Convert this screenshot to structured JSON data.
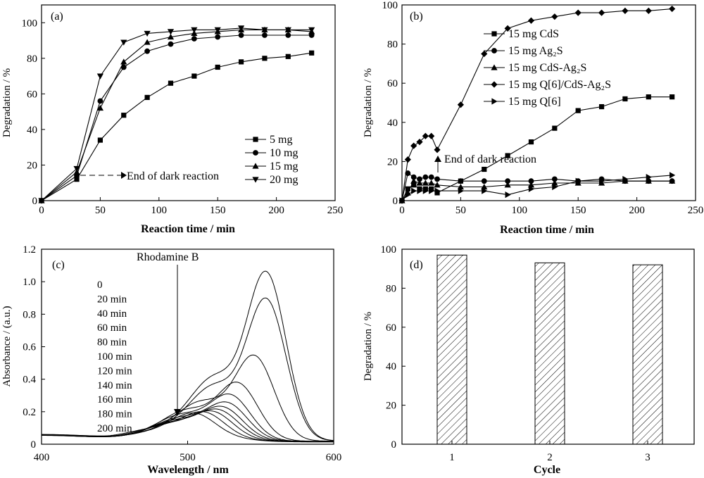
{
  "chart_data": [
    {
      "panel": "(a)",
      "type": "line",
      "xlabel": "Reaction time / min",
      "ylabel": "Degradation / %",
      "xlim": [
        0,
        250
      ],
      "ylim": [
        0,
        110
      ],
      "x_ticks": [
        "0",
        "50",
        "100",
        "150",
        "200",
        "250"
      ],
      "y_ticks": [
        "0",
        "20",
        "40",
        "60",
        "80",
        "100"
      ],
      "legend_position": "bottom-right",
      "series": [
        {
          "name": "5 mg",
          "marker": "square",
          "x": [
            0,
            30,
            50,
            70,
            90,
            110,
            130,
            150,
            170,
            190,
            210,
            230
          ],
          "y": [
            0,
            12,
            34,
            48,
            58,
            66,
            70,
            75,
            78,
            80,
            81,
            83
          ]
        },
        {
          "name": "10 mg",
          "marker": "circle",
          "x": [
            0,
            30,
            50,
            70,
            90,
            110,
            130,
            150,
            170,
            190,
            210,
            230
          ],
          "y": [
            0,
            14,
            56,
            75,
            84,
            88,
            91,
            92,
            93,
            93,
            93,
            93
          ]
        },
        {
          "name": "15 mg",
          "marker": "triangle-up",
          "x": [
            0,
            30,
            50,
            70,
            90,
            110,
            130,
            150,
            170,
            190,
            210,
            230
          ],
          "y": [
            0,
            16,
            52,
            78,
            89,
            92,
            94,
            95,
            96,
            96,
            96,
            95
          ]
        },
        {
          "name": "20 mg",
          "marker": "triangle-down",
          "x": [
            0,
            30,
            50,
            70,
            90,
            110,
            130,
            150,
            170,
            190,
            210,
            230
          ],
          "y": [
            0,
            18,
            70,
            89,
            94,
            95,
            96,
            96,
            97,
            96,
            96,
            96
          ]
        }
      ],
      "annotation": {
        "text": "End of dark reaction",
        "x": 30,
        "y": 14
      }
    },
    {
      "panel": "(b)",
      "type": "line",
      "xlabel": "Reaction time / min",
      "ylabel": "Degradation / %",
      "xlim": [
        0,
        250
      ],
      "ylim": [
        0,
        100
      ],
      "x_ticks": [
        "0",
        "50",
        "100",
        "150",
        "200",
        "250"
      ],
      "y_ticks": [
        "0",
        "20",
        "40",
        "60",
        "80",
        "100"
      ],
      "legend_position": "top-right",
      "series": [
        {
          "name": "15 mg CdS",
          "marker": "square",
          "x": [
            0,
            5,
            10,
            15,
            20,
            25,
            30,
            50,
            70,
            90,
            110,
            130,
            150,
            170,
            190,
            210,
            230
          ],
          "y": [
            0,
            6,
            8,
            6,
            6,
            6,
            4,
            10,
            16,
            23,
            30,
            37,
            46,
            48,
            52,
            53,
            53
          ]
        },
        {
          "name": "15 mg Ag₂S",
          "marker": "circle",
          "x": [
            0,
            5,
            10,
            15,
            20,
            25,
            30,
            50,
            70,
            90,
            110,
            130,
            150,
            170,
            190,
            210,
            230
          ],
          "y": [
            0,
            14,
            12,
            11,
            12,
            12,
            11,
            10,
            10,
            10,
            10,
            11,
            10,
            11,
            10,
            10,
            10
          ]
        },
        {
          "name": "15 mg CdS-Ag₂S",
          "marker": "triangle-up",
          "x": [
            0,
            5,
            10,
            15,
            20,
            25,
            30,
            50,
            70,
            90,
            110,
            130,
            150,
            170,
            190,
            210,
            230
          ],
          "y": [
            0,
            4,
            10,
            9,
            9,
            9,
            8,
            7,
            7,
            8,
            8,
            9,
            9,
            9,
            10,
            10,
            10
          ]
        },
        {
          "name": "15 mg Q[6]/CdS-Ag₂S",
          "marker": "diamond",
          "x": [
            0,
            5,
            10,
            15,
            20,
            25,
            30,
            50,
            70,
            90,
            110,
            130,
            150,
            170,
            190,
            210,
            230
          ],
          "y": [
            0,
            21,
            28,
            30,
            33,
            33,
            26,
            49,
            75,
            88,
            92,
            94,
            96,
            96,
            97,
            97,
            98
          ]
        },
        {
          "name": "15 mg Q[6]",
          "marker": "triangle-right",
          "x": [
            0,
            5,
            10,
            15,
            20,
            25,
            30,
            50,
            70,
            90,
            110,
            130,
            150,
            170,
            190,
            210,
            230
          ],
          "y": [
            0,
            3,
            5,
            5,
            5,
            5,
            5,
            5,
            5,
            3,
            6,
            7,
            10,
            10,
            11,
            12,
            13
          ]
        }
      ],
      "annotation": {
        "text": "End of dark reaction",
        "x": 30,
        "y": 26
      }
    },
    {
      "panel": "(c)",
      "type": "line",
      "xlabel": "Wavelength / nm",
      "ylabel": "Absorbance / (a.u.)",
      "xlim": [
        400,
        600
      ],
      "ylim": [
        0,
        1.2
      ],
      "x_ticks": [
        "400",
        "500",
        "600"
      ],
      "y_ticks": [
        "0",
        "0.2",
        "0.4",
        "0.6",
        "0.8",
        "1.0",
        "1.2"
      ],
      "annotation": {
        "text": "Rhodamine B"
      },
      "curve_labels": [
        "0",
        "20 min",
        "40 min",
        "60 min",
        "80 min",
        "100 min",
        "120 min",
        "140 min",
        "160 min",
        "180 min",
        "200 min"
      ],
      "series": [
        {
          "name": "0",
          "peak_wavelength": 554,
          "peak_absorbance": 1.04
        },
        {
          "name": "20 min",
          "peak_wavelength": 554,
          "peak_absorbance": 0.88
        },
        {
          "name": "40 min",
          "peak_wavelength": 546,
          "peak_absorbance": 0.53
        },
        {
          "name": "60 min",
          "peak_wavelength": 535,
          "peak_absorbance": 0.35
        },
        {
          "name": "80 min",
          "peak_wavelength": 530,
          "peak_absorbance": 0.27
        },
        {
          "name": "100 min",
          "peak_wavelength": 528,
          "peak_absorbance": 0.22
        },
        {
          "name": "120 min",
          "peak_wavelength": 525,
          "peak_absorbance": 0.19
        },
        {
          "name": "140 min",
          "peak_wavelength": 522,
          "peak_absorbance": 0.17
        },
        {
          "name": "160 min",
          "peak_wavelength": 518,
          "peak_absorbance": 0.155
        },
        {
          "name": "180 min",
          "peak_wavelength": 512,
          "peak_absorbance": 0.145
        },
        {
          "name": "200 min",
          "peak_wavelength": 505,
          "peak_absorbance": 0.135
        }
      ]
    },
    {
      "panel": "(d)",
      "type": "bar",
      "xlabel": "Cycle",
      "ylabel": "Degradation / %",
      "categories": [
        "1",
        "2",
        "3"
      ],
      "values": [
        97,
        93,
        92
      ],
      "ylim": [
        0,
        100
      ],
      "y_ticks": [
        "0",
        "20",
        "40",
        "60",
        "80",
        "100"
      ],
      "bar_fill": "hatched"
    }
  ]
}
